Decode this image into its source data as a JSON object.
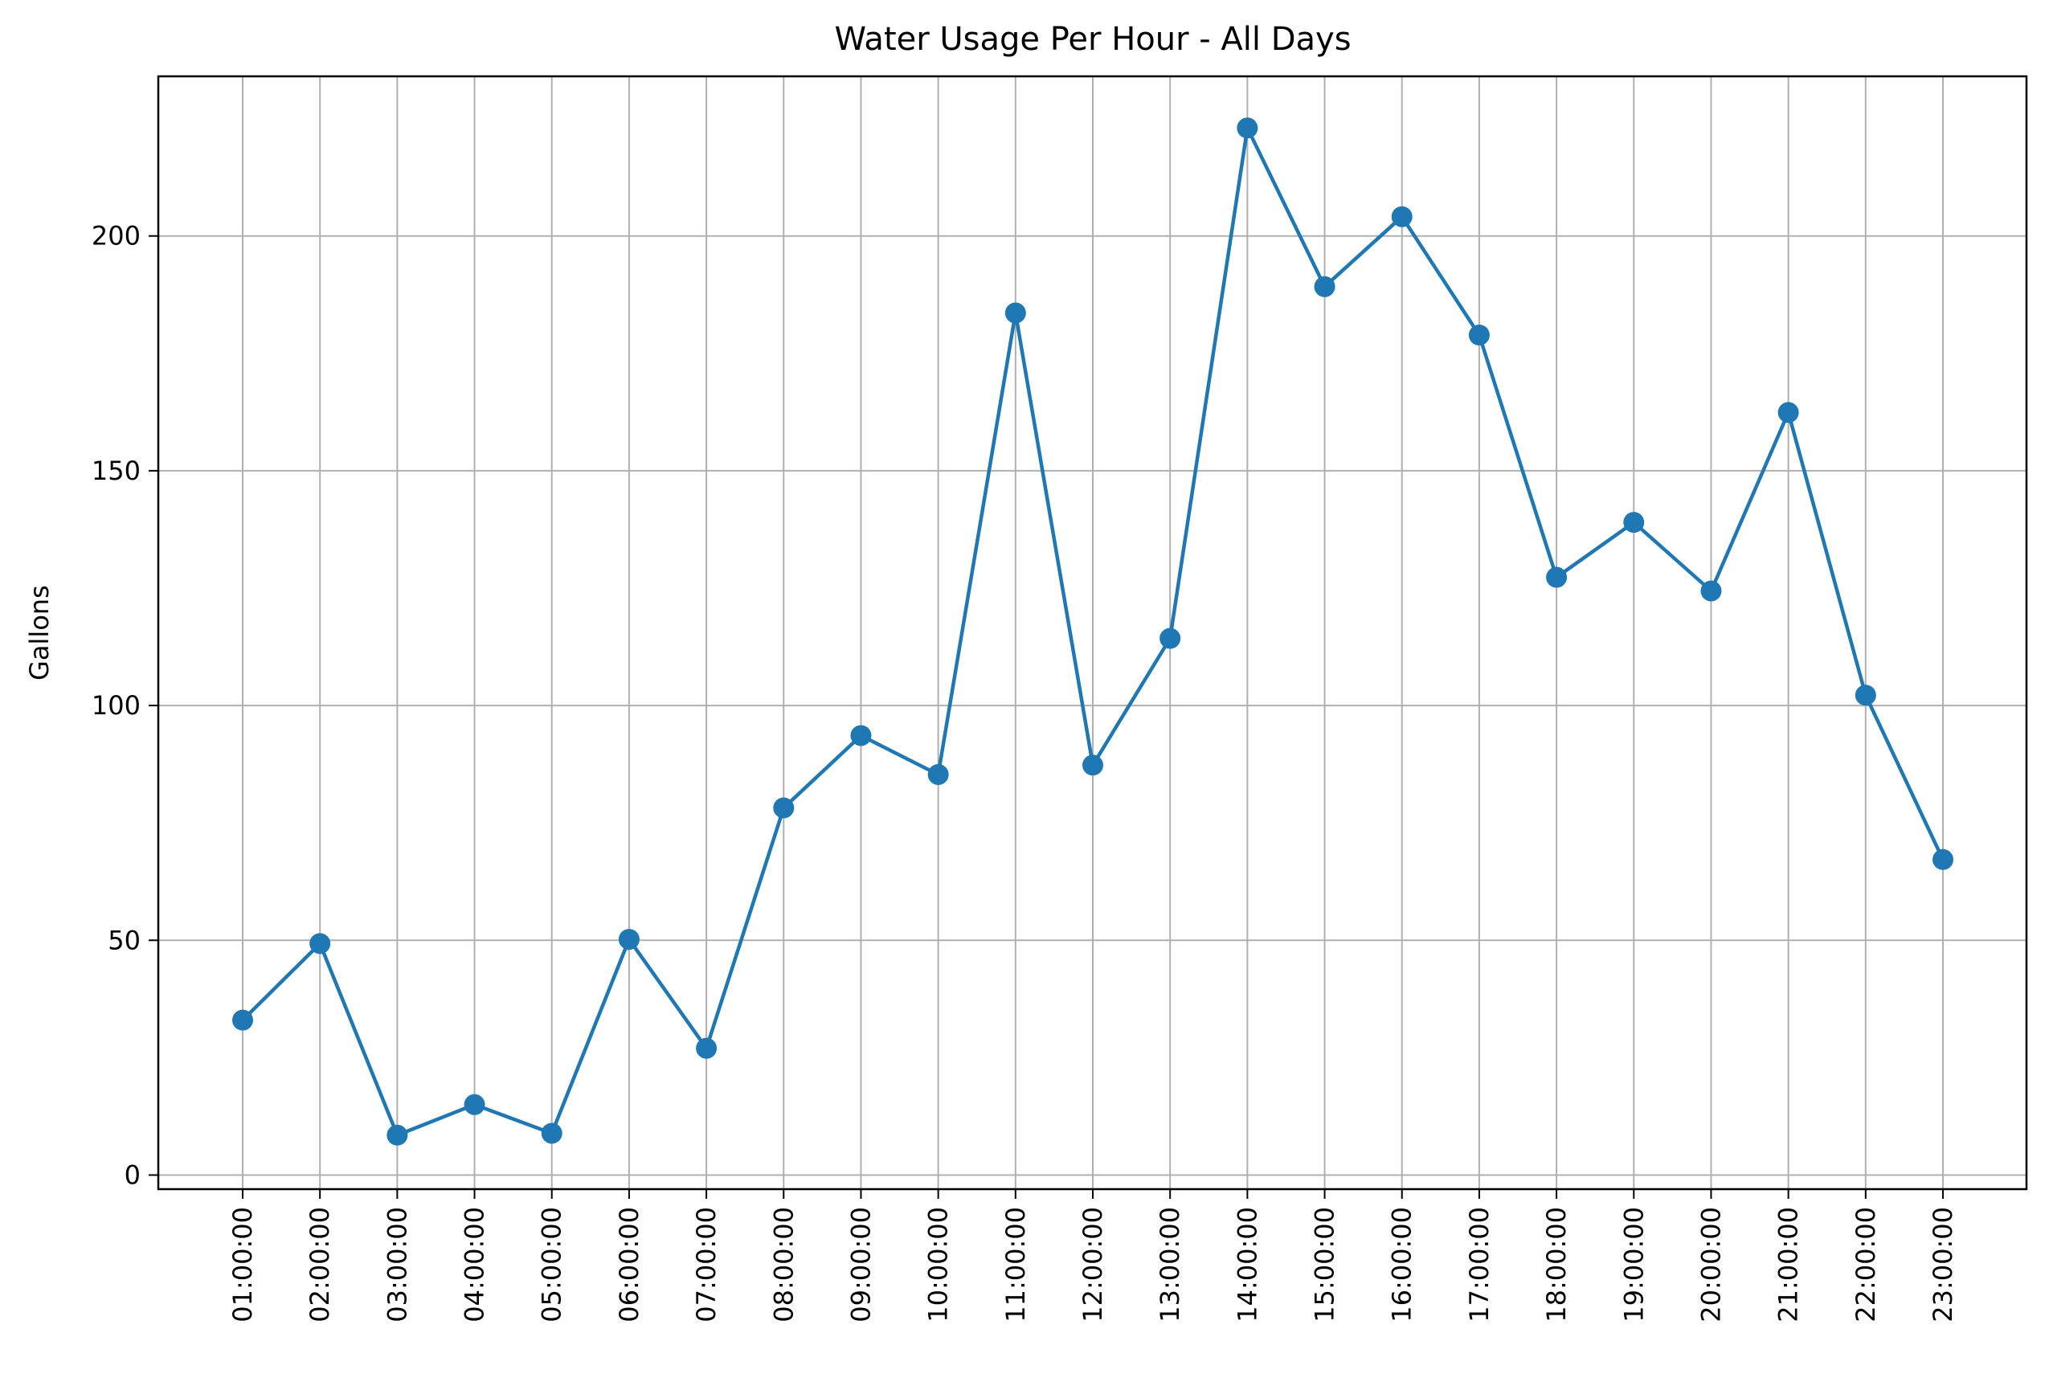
{
  "chart_data": {
    "type": "line",
    "title": "Water Usage Per Hour - All Days",
    "xlabel": "",
    "ylabel": "Gallons",
    "ylim": [
      -3,
      234
    ],
    "yticks": [
      0,
      50,
      100,
      150,
      200
    ],
    "grid": true,
    "legend": "none",
    "marker": "circle",
    "colors": {
      "line": "#1f77b4",
      "grid": "#b0b0b0",
      "frame": "#000000"
    },
    "categories": [
      "01:00:00",
      "02:00:00",
      "03:00:00",
      "04:00:00",
      "05:00:00",
      "06:00:00",
      "07:00:00",
      "08:00:00",
      "09:00:00",
      "10:00:00",
      "11:00:00",
      "12:00:00",
      "13:00:00",
      "14:00:00",
      "15:00:00",
      "16:00:00",
      "17:00:00",
      "18:00:00",
      "19:00:00",
      "20:00:00",
      "21:00:00",
      "22:00:00",
      "23:00:00"
    ],
    "series": [
      {
        "values": [
          33,
          49.3,
          8.5,
          15,
          8.9,
          50.2,
          27,
          78.2,
          93.6,
          85.3,
          183.6,
          87.3,
          114.3,
          223,
          189.2,
          204.1,
          178.9,
          127.3,
          139,
          124.4,
          162.4,
          102.2,
          67.2
        ]
      }
    ]
  }
}
